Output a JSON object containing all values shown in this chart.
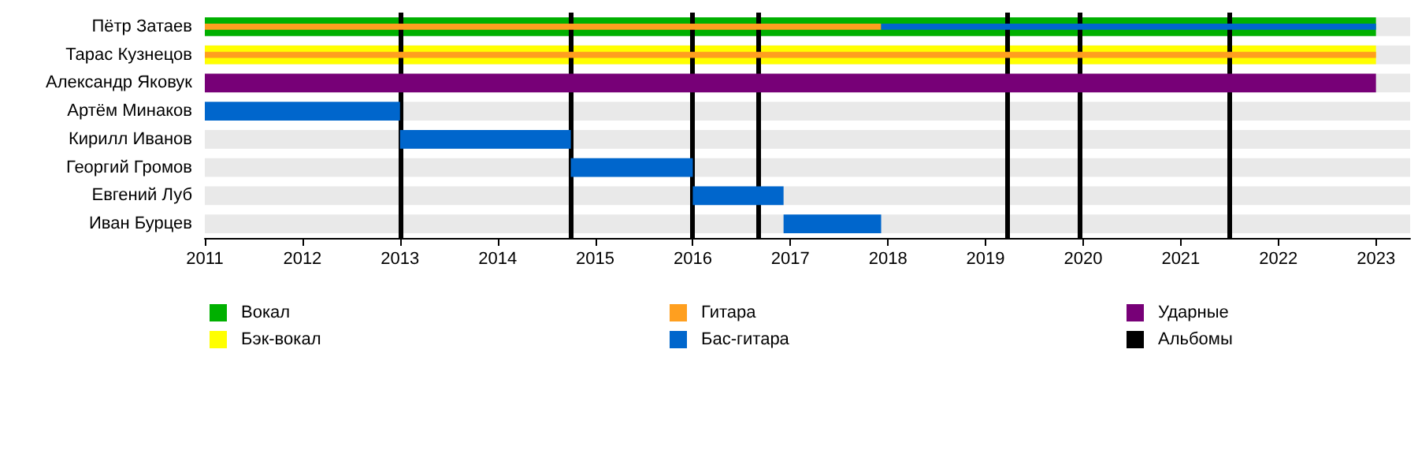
{
  "chart_data": {
    "type": "bar",
    "orientation": "horizontal",
    "categories": [
      "Пётр Затаев",
      "Тарас Кузнецов",
      "Александр Яковук",
      "Артём Минаков",
      "Кирилл Иванов",
      "Георгий Громов",
      "Евгений Луб",
      "Иван Бурцев"
    ],
    "series": [
      {
        "name": "Вокал",
        "color": "#00b000",
        "values": [
          12,
          null,
          null,
          null,
          null,
          null,
          null,
          null
        ],
        "base": [
          2011,
          null,
          null,
          null,
          null,
          null,
          null,
          null
        ]
      },
      {
        "name": "Бэк-вокал",
        "color": "#ffff00",
        "values": [
          null,
          12,
          null,
          null,
          null,
          null,
          null,
          null
        ],
        "base": [
          null,
          2011,
          null,
          null,
          null,
          null,
          null,
          null
        ]
      },
      {
        "name": "Гитара",
        "color": "#ff9f1f",
        "values": [
          6.93,
          12,
          null,
          null,
          null,
          null,
          null,
          null
        ],
        "base": [
          2011,
          2011,
          null,
          null,
          null,
          null,
          null,
          null
        ]
      },
      {
        "name": "Бас-гитара",
        "color": "#0066cc",
        "values": [
          5.07,
          null,
          null,
          2,
          1.75,
          1.25,
          0.93,
          1
        ],
        "base": [
          2017.93,
          null,
          null,
          2011,
          2013,
          2014.75,
          2016,
          2016.93
        ]
      },
      {
        "name": "Ударные",
        "color": "#770077",
        "values": [
          null,
          null,
          12,
          null,
          null,
          null,
          null,
          null
        ],
        "base": [
          null,
          null,
          2011,
          null,
          null,
          null,
          null,
          null
        ]
      }
    ],
    "ref_lines": [
      {
        "axis": "x",
        "value": 2013,
        "label": "Альбомы",
        "color": "#000000"
      },
      {
        "axis": "x",
        "value": 2014.75,
        "color": "#000000"
      },
      {
        "axis": "x",
        "value": 2016,
        "color": "#000000"
      },
      {
        "axis": "x",
        "value": 2016.67,
        "color": "#000000"
      },
      {
        "axis": "x",
        "value": 2019.22,
        "color": "#000000"
      },
      {
        "axis": "x",
        "value": 2019.97,
        "color": "#000000"
      },
      {
        "axis": "x",
        "value": 2021.5,
        "color": "#000000"
      }
    ],
    "xlim": [
      2011,
      2023.35
    ],
    "xticks": [
      2011,
      2012,
      2013,
      2014,
      2015,
      2016,
      2017,
      2018,
      2019,
      2020,
      2021,
      2022,
      2023
    ],
    "grid": false,
    "legend": "bottom"
  }
}
